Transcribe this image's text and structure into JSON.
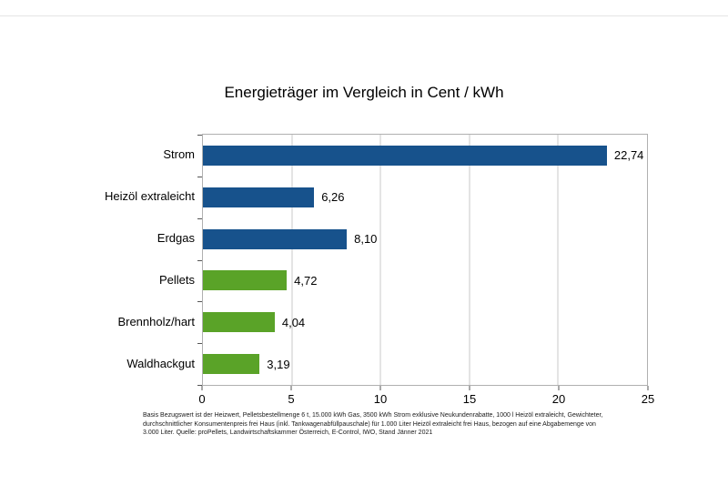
{
  "chart_data": {
    "type": "bar",
    "orientation": "horizontal",
    "title": "Energieträger im Vergleich in Cent / kWh",
    "categories": [
      "Strom",
      "Heizöl extraleicht",
      "Erdgas",
      "Pellets",
      "Brennholz/hart",
      "Waldhackgut"
    ],
    "values": [
      22.74,
      6.26,
      8.1,
      4.72,
      4.04,
      3.19
    ],
    "value_labels": [
      "22,74",
      "6,26",
      "8,10",
      "4,72",
      "4,04",
      "3,19"
    ],
    "colors": [
      "#17528C",
      "#17528C",
      "#17528C",
      "#5AA328",
      "#5AA328",
      "#5AA328"
    ],
    "bar_color_blue": "#17528C",
    "bar_color_green": "#5AA328",
    "xlabel": "",
    "ylabel": "",
    "xlim": [
      0,
      25
    ],
    "xticks": [
      0,
      5,
      10,
      15,
      20,
      25
    ],
    "xtick_labels": [
      "0",
      "5",
      "10",
      "15",
      "20",
      "25"
    ],
    "grid": "vertical",
    "legend": "none"
  },
  "footnote": {
    "lines": [
      "Basis Bezugswert ist der Heizwert, Pelletsbestellmenge 6 t, 15.000 kWh Gas, 3500 kWh Strom exklusive Neukundenrabatte, 1000 l Heizöl extraleicht, Gewichteter,",
      "durchschnittlicher Konsumentenpreis frei Haus (inkl. Tankwagenabfüllpauschale) für 1.000 Liter Heizöl extraleicht frei Haus, bezogen auf eine Abgabemenge von",
      "3.000 Liter. Quelle: proPellets, Landwirtschaftskammer Österreich, E-Control, IWO, Stand Jänner 2021"
    ]
  }
}
